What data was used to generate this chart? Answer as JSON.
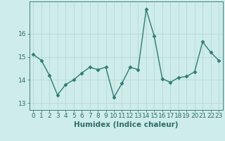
{
  "x": [
    0,
    1,
    2,
    3,
    4,
    5,
    6,
    7,
    8,
    9,
    10,
    11,
    12,
    13,
    14,
    15,
    16,
    17,
    18,
    19,
    20,
    21,
    22,
    23
  ],
  "y": [
    15.1,
    14.85,
    14.2,
    13.35,
    13.8,
    14.0,
    14.3,
    14.55,
    14.45,
    14.55,
    13.25,
    13.85,
    14.55,
    14.45,
    17.05,
    15.9,
    14.05,
    13.9,
    14.1,
    14.15,
    14.35,
    15.65,
    15.2,
    14.85
  ],
  "line_color": "#2d7d74",
  "marker": "D",
  "markersize": 2.5,
  "linewidth": 1.0,
  "xlabel": "Humidex (Indice chaleur)",
  "xlim": [
    -0.5,
    23.5
  ],
  "ylim": [
    12.7,
    17.4
  ],
  "yticks": [
    13,
    14,
    15,
    16
  ],
  "xticks": [
    0,
    1,
    2,
    3,
    4,
    5,
    6,
    7,
    8,
    9,
    10,
    11,
    12,
    13,
    14,
    15,
    16,
    17,
    18,
    19,
    20,
    21,
    22,
    23
  ],
  "bg_color": "#ceecea",
  "grid_color": "#b8d8d5",
  "tick_color": "#2d6e67",
  "xlabel_fontsize": 7.5,
  "tick_fontsize": 6.5
}
